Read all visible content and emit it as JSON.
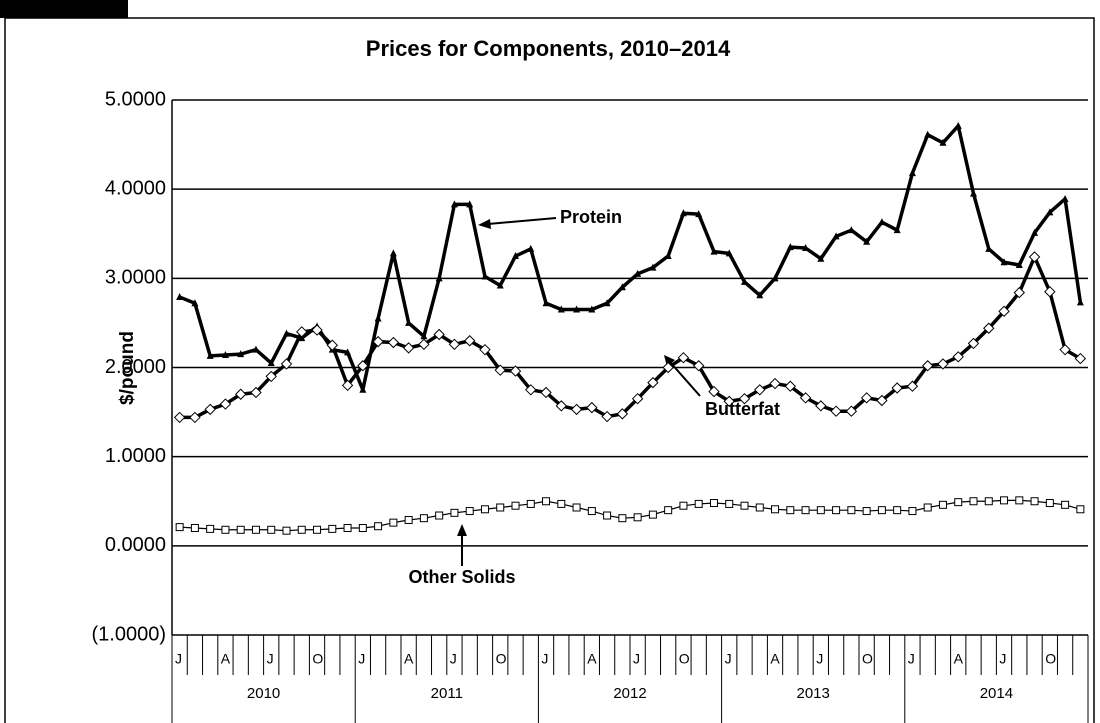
{
  "chart_data": {
    "type": "line",
    "title": "Prices for Components, 2010–2014",
    "y_label": "$/pound",
    "categories": [
      "J",
      null,
      null,
      "A",
      null,
      null,
      "J",
      null,
      null,
      "O",
      null,
      null,
      "J",
      null,
      null,
      "A",
      null,
      null,
      "J",
      null,
      null,
      "O",
      null,
      null,
      "J",
      null,
      null,
      "A",
      null,
      null,
      "J",
      null,
      null,
      "O",
      null,
      null,
      "J",
      null,
      null,
      "A",
      null,
      null,
      "J",
      null,
      null,
      "O",
      null,
      null,
      "J",
      null,
      null,
      "A",
      null,
      null,
      "J",
      null,
      null,
      "O",
      null,
      null
    ],
    "years": [
      "2010",
      "2011",
      "2012",
      "2013",
      "2014"
    ],
    "ylim": [
      -1,
      5
    ],
    "yticks": [
      {
        "value": -1,
        "label": "(1.0000)"
      },
      {
        "value": 0,
        "label": "0.0000"
      },
      {
        "value": 1,
        "label": "1.0000"
      },
      {
        "value": 2,
        "label": "2.0000"
      },
      {
        "value": 3,
        "label": "3.0000"
      },
      {
        "value": 4,
        "label": "4.0000"
      },
      {
        "value": 5,
        "label": "5.0000"
      }
    ],
    "grid": true,
    "series": [
      {
        "name": "Protein",
        "color": "#000000",
        "marker": "triangle",
        "line_width": 3.5,
        "values": [
          2.79,
          2.72,
          2.13,
          2.14,
          2.15,
          2.2,
          2.05,
          2.38,
          2.33,
          2.46,
          2.2,
          2.17,
          1.75,
          2.55,
          3.28,
          2.5,
          2.35,
          3.0,
          3.83,
          3.83,
          3.02,
          2.92,
          3.25,
          3.33,
          2.72,
          2.65,
          2.65,
          2.65,
          2.72,
          2.9,
          3.05,
          3.12,
          3.25,
          3.73,
          3.72,
          3.3,
          3.28,
          2.96,
          2.81,
          3.0,
          3.35,
          3.34,
          3.22,
          3.47,
          3.54,
          3.41,
          3.63,
          3.54,
          4.18,
          4.61,
          4.52,
          4.71,
          3.95,
          3.33,
          3.18,
          3.15,
          3.51,
          3.74,
          3.89,
          2.73
        ]
      },
      {
        "name": "Butterfat",
        "color": "#000000",
        "marker": "diamond",
        "line_width": 3.5,
        "values": [
          1.44,
          1.44,
          1.53,
          1.59,
          1.7,
          1.72,
          1.9,
          2.04,
          2.4,
          2.42,
          2.25,
          1.8,
          2.02,
          2.29,
          2.28,
          2.22,
          2.26,
          2.37,
          2.26,
          2.3,
          2.2,
          1.97,
          1.96,
          1.75,
          1.72,
          1.57,
          1.53,
          1.55,
          1.45,
          1.48,
          1.65,
          1.83,
          2.0,
          2.11,
          2.02,
          1.73,
          1.62,
          1.65,
          1.75,
          1.82,
          1.79,
          1.66,
          1.57,
          1.51,
          1.51,
          1.66,
          1.63,
          1.77,
          1.79,
          2.02,
          2.04,
          2.12,
          2.27,
          2.44,
          2.63,
          2.84,
          3.24,
          2.85,
          2.2,
          2.1
        ]
      },
      {
        "name": "Other Solids",
        "color": "#000000",
        "marker": "square",
        "line_width": 1.2,
        "values": [
          0.21,
          0.2,
          0.19,
          0.18,
          0.18,
          0.18,
          0.18,
          0.17,
          0.18,
          0.18,
          0.19,
          0.2,
          0.2,
          0.22,
          0.26,
          0.29,
          0.31,
          0.34,
          0.37,
          0.39,
          0.41,
          0.43,
          0.45,
          0.47,
          0.5,
          0.47,
          0.43,
          0.39,
          0.34,
          0.31,
          0.32,
          0.35,
          0.4,
          0.45,
          0.47,
          0.48,
          0.47,
          0.45,
          0.43,
          0.41,
          0.4,
          0.4,
          0.4,
          0.4,
          0.4,
          0.39,
          0.4,
          0.4,
          0.39,
          0.43,
          0.46,
          0.49,
          0.5,
          0.5,
          0.51,
          0.51,
          0.5,
          0.48,
          0.46,
          0.41
        ]
      }
    ]
  }
}
